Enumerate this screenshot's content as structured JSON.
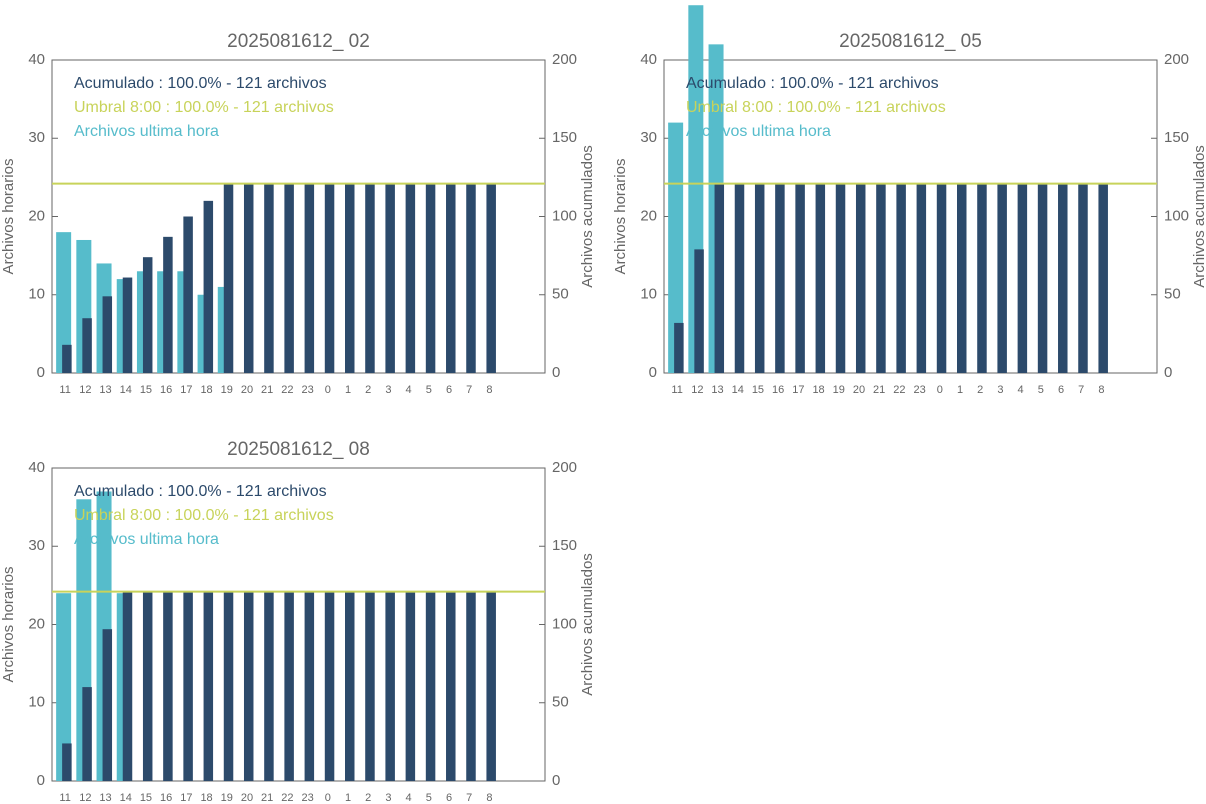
{
  "chart_data": [
    {
      "type": "bar",
      "title": "2025081612_ 02",
      "ylabel": "Archivos horarios",
      "y2label": "Archivos acumulados",
      "categories": [
        "11",
        "12",
        "13",
        "14",
        "15",
        "16",
        "17",
        "18",
        "19",
        "20",
        "21",
        "22",
        "23",
        "0",
        "1",
        "2",
        "3",
        "4",
        "5",
        "6",
        "7",
        "8"
      ],
      "series": [
        {
          "name": "Acumulado : 100.0% - 121 archivos",
          "color": "#2c4a6b",
          "axis": "y2",
          "values": [
            18,
            35,
            49,
            61,
            74,
            87,
            100,
            110,
            121,
            121,
            121,
            121,
            121,
            121,
            121,
            121,
            121,
            121,
            121,
            121,
            121,
            121
          ]
        },
        {
          "name": "Archivos ultima hora",
          "color": "#56bccb",
          "values": [
            18,
            17,
            14,
            12,
            13,
            13,
            13,
            10,
            11,
            0,
            0,
            0,
            0,
            0,
            0,
            0,
            0,
            0,
            0,
            0,
            0,
            0
          ]
        }
      ],
      "threshold": {
        "name": "Umbral 8:00 : 100.0% - 121 archivos",
        "value": 121,
        "color": "#c8d35a",
        "axis": "y2"
      },
      "ylim": [
        0,
        40
      ],
      "yticks": [
        0,
        10,
        20,
        30,
        40
      ],
      "y2lim": [
        0,
        200
      ],
      "y2ticks": [
        0,
        50,
        100,
        150,
        200
      ]
    },
    {
      "type": "bar",
      "title": "2025081612_ 05",
      "ylabel": "Archivos horarios",
      "y2label": "Archivos acumulados",
      "categories": [
        "11",
        "12",
        "13",
        "14",
        "15",
        "16",
        "17",
        "18",
        "19",
        "20",
        "21",
        "22",
        "23",
        "0",
        "1",
        "2",
        "3",
        "4",
        "5",
        "6",
        "7",
        "8"
      ],
      "series": [
        {
          "name": "Acumulado : 100.0% - 121 archivos",
          "color": "#2c4a6b",
          "axis": "y2",
          "values": [
            32,
            79,
            121,
            121,
            121,
            121,
            121,
            121,
            121,
            121,
            121,
            121,
            121,
            121,
            121,
            121,
            121,
            121,
            121,
            121,
            121,
            121
          ]
        },
        {
          "name": "Archivos ultima hora",
          "color": "#56bccb",
          "values": [
            32,
            47,
            42,
            0,
            0,
            0,
            0,
            0,
            0,
            0,
            0,
            0,
            0,
            0,
            0,
            0,
            0,
            0,
            0,
            0,
            0,
            0
          ]
        }
      ],
      "threshold": {
        "name": "Umbral 8:00 : 100.0% - 121 archivos",
        "value": 121,
        "color": "#c8d35a",
        "axis": "y2"
      },
      "ylim": [
        0,
        40
      ],
      "yticks": [
        0,
        10,
        20,
        30,
        40
      ],
      "y2lim": [
        0,
        200
      ],
      "y2ticks": [
        0,
        50,
        100,
        150,
        200
      ]
    },
    {
      "type": "bar",
      "title": "2025081612_ 08",
      "ylabel": "Archivos horarios",
      "y2label": "Archivos acumulados",
      "categories": [
        "11",
        "12",
        "13",
        "14",
        "15",
        "16",
        "17",
        "18",
        "19",
        "20",
        "21",
        "22",
        "23",
        "0",
        "1",
        "2",
        "3",
        "4",
        "5",
        "6",
        "7",
        "8"
      ],
      "series": [
        {
          "name": "Acumulado : 100.0% - 121 archivos",
          "color": "#2c4a6b",
          "axis": "y2",
          "values": [
            24,
            60,
            97,
            121,
            121,
            121,
            121,
            121,
            121,
            121,
            121,
            121,
            121,
            121,
            121,
            121,
            121,
            121,
            121,
            121,
            121,
            121
          ]
        },
        {
          "name": "Archivos ultima hora",
          "color": "#56bccb",
          "values": [
            24,
            36,
            37,
            24,
            0,
            0,
            0,
            0,
            0,
            0,
            0,
            0,
            0,
            0,
            0,
            0,
            0,
            0,
            0,
            0,
            0,
            0
          ]
        }
      ],
      "threshold": {
        "name": "Umbral 8:00 : 100.0% - 121 archivos",
        "value": 121,
        "color": "#c8d35a",
        "axis": "y2"
      },
      "ylim": [
        0,
        40
      ],
      "yticks": [
        0,
        10,
        20,
        30,
        40
      ],
      "y2lim": [
        0,
        200
      ],
      "y2ticks": [
        0,
        50,
        100,
        150,
        200
      ]
    }
  ]
}
